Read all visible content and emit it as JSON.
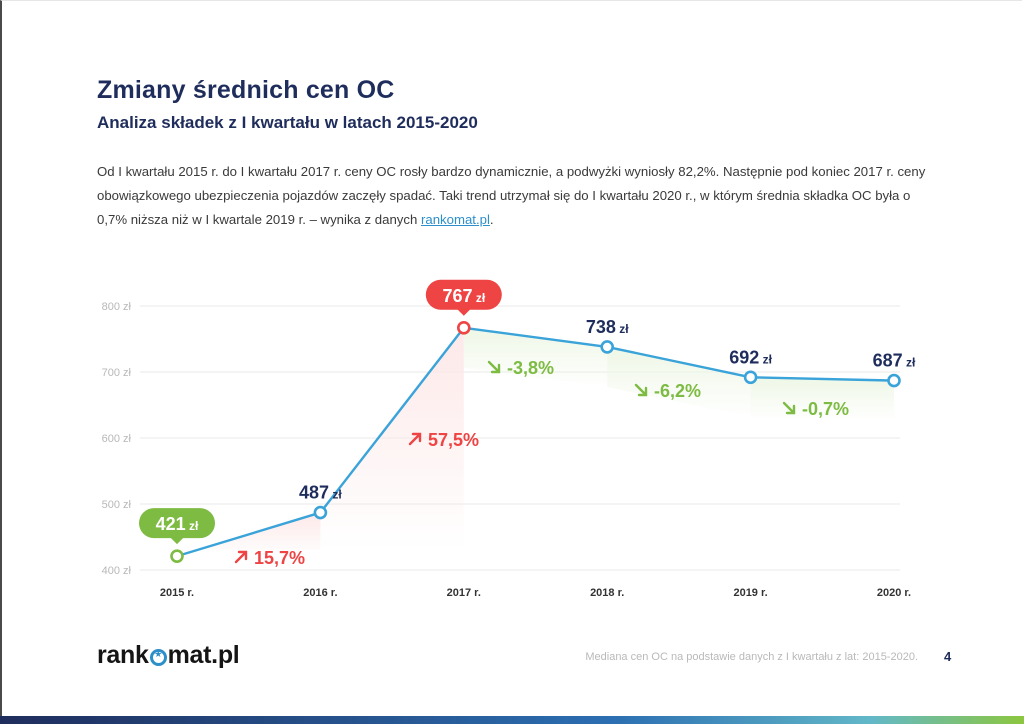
{
  "header": {
    "title": "Zmiany średnich cen OC",
    "subtitle": "Analiza składek z I kwartału w latach 2015-2020"
  },
  "intro": {
    "text": "Od I kwartału 2015 r. do I kwartału 2017 r. ceny OC rosły bardzo dynamicznie, a podwyżki wyniosły 82,2%. Następnie pod koniec 2017 r. ceny obowiązkowego ubezpieczenia pojazdów zaczęły spadać. Taki trend utrzymał się do I kwartału 2020 r., w którym średnia składka OC była o 0,7% niższa niż w I kwartale 2019 r. – wynika z danych ",
    "link_text": "rankomat.pl",
    "suffix": "."
  },
  "chart_data": {
    "type": "line",
    "categories": [
      "2015 r.",
      "2016 r.",
      "2017 r.",
      "2018 r.",
      "2019 r.",
      "2020 r."
    ],
    "values": [
      421,
      487,
      767,
      738,
      692,
      687
    ],
    "value_labels": [
      "421 zł",
      "487 zł",
      "767 zł",
      "738 zł",
      "692 zł",
      "687 zł"
    ],
    "yticks": [
      400,
      500,
      600,
      700,
      800
    ],
    "ytick_labels": [
      "400 zł",
      "500 zł",
      "600 zł",
      "700 zł",
      "800 zł"
    ],
    "ylim": [
      400,
      800
    ],
    "grid": true,
    "changes": [
      {
        "from": 0,
        "to": 1,
        "label": "15,7%",
        "direction": "up"
      },
      {
        "from": 1,
        "to": 2,
        "label": "57,5%",
        "direction": "up"
      },
      {
        "from": 2,
        "to": 3,
        "label": "-3,8%",
        "direction": "down"
      },
      {
        "from": 3,
        "to": 4,
        "label": "-6,2%",
        "direction": "down"
      },
      {
        "from": 4,
        "to": 5,
        "label": "-0,7%",
        "direction": "down"
      }
    ],
    "colors": {
      "line": "#3aa3d9",
      "grid": "#e9e9e9",
      "tick": "#b8b8b8",
      "xtick": "#333333",
      "value_label": "#1f2d5c",
      "min_badge": "#7dbb42",
      "max_badge": "#ee4444",
      "up": "#ee4444",
      "down": "#7dbb42",
      "up_fill": "#fde8e8",
      "down_fill": "#eef7e6"
    }
  },
  "footer": {
    "brand_prefix": "rank",
    "brand_suffix": "mat.pl",
    "source": "Mediana cen OC na podstawie danych z I kwartału z lat: 2015-2020.",
    "page_number": "4"
  }
}
